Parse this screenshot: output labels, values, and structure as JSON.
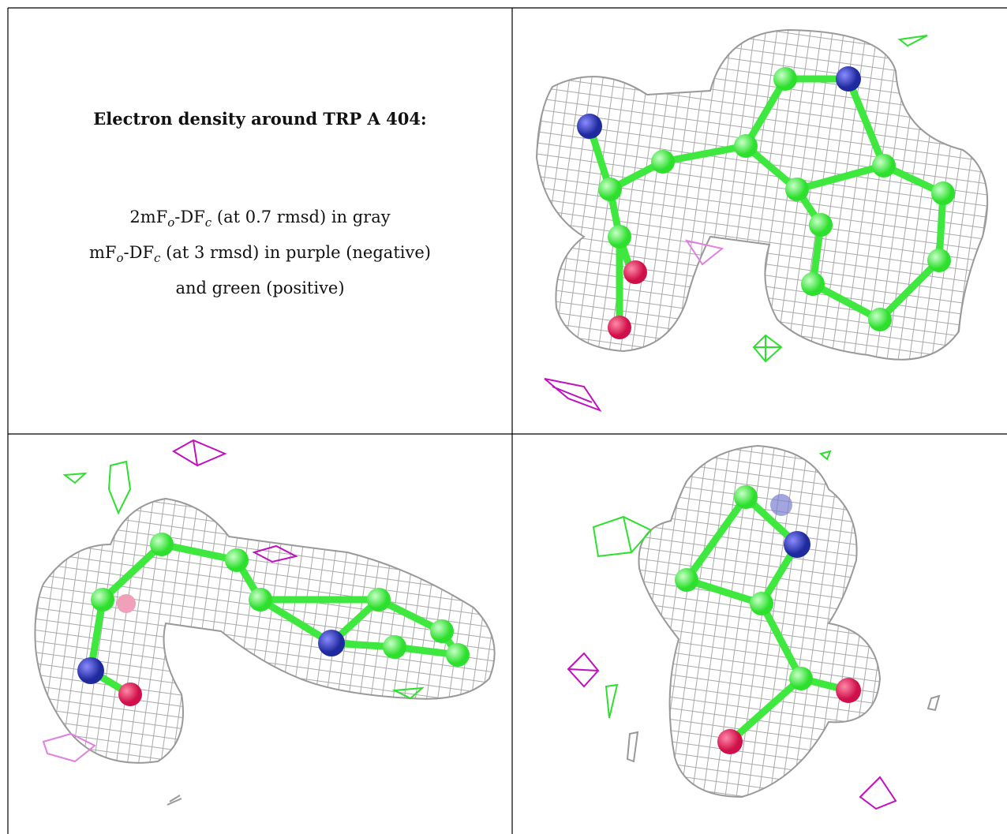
{
  "caption": {
    "title": "Electron density around TRP A 404:",
    "lines": [
      {
        "parts": [
          "2mF",
          "o",
          "-DF",
          "c",
          " (at 0.7 rmsd) in gray"
        ]
      },
      {
        "parts": [
          "mF",
          "o",
          "-DF",
          "c",
          " (at 3 rmsd) in purple (negative)"
        ]
      },
      {
        "parts": [
          "and green (positive)"
        ]
      }
    ]
  }
}
